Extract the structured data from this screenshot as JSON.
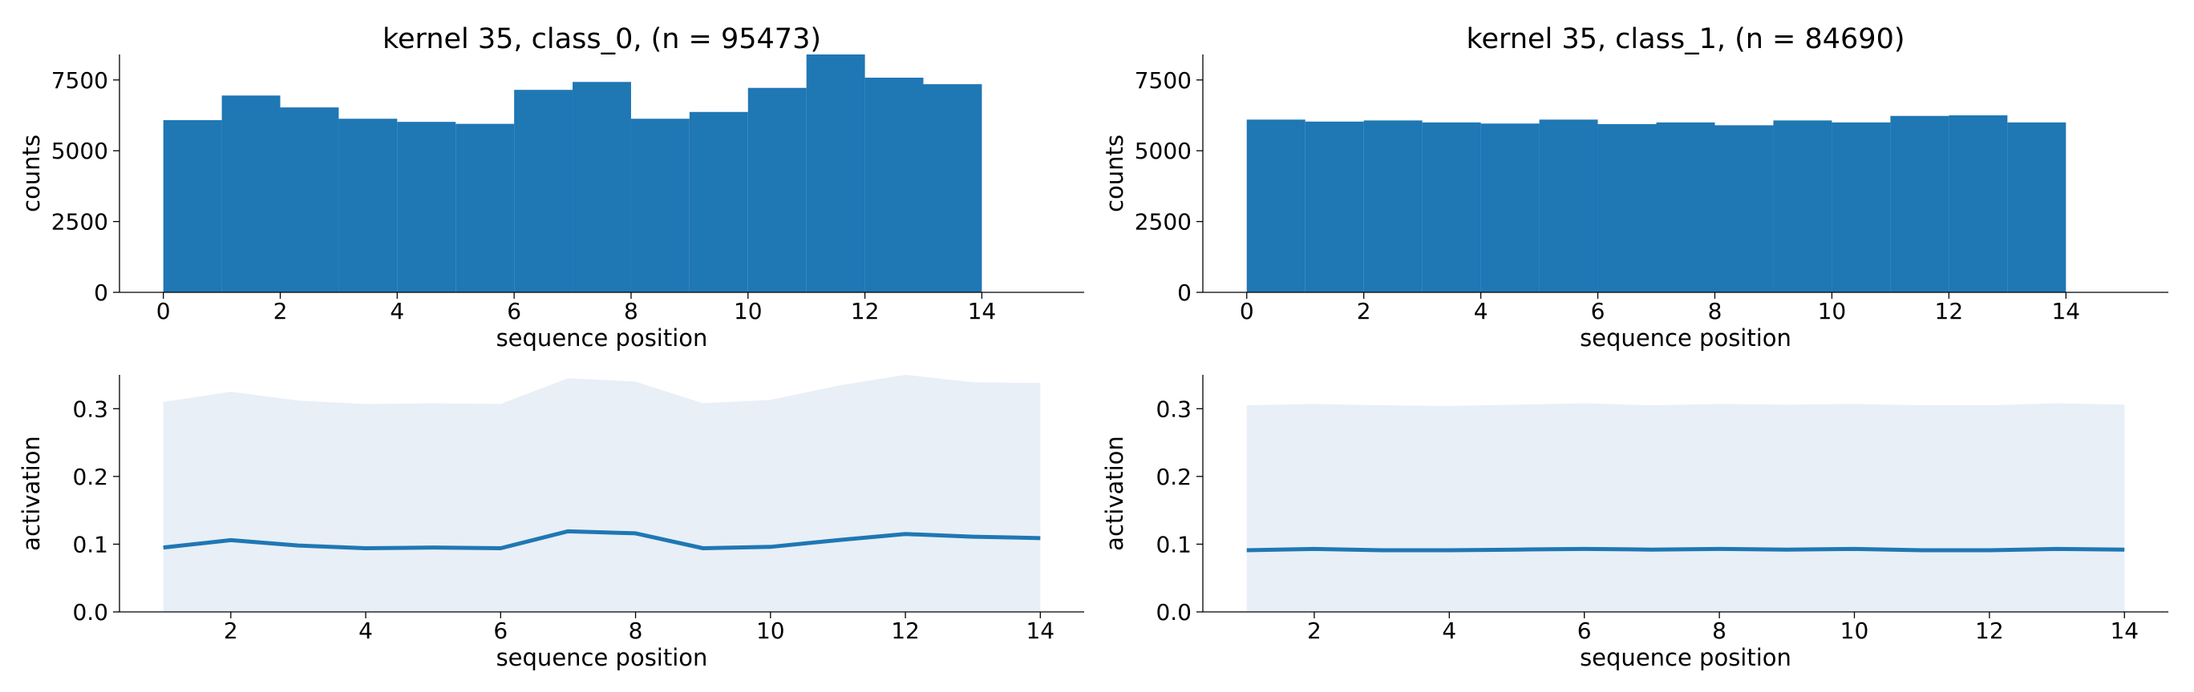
{
  "colors": {
    "bar": "#1f77b4",
    "line": "#1f77b4",
    "band": "#e8eff7",
    "axis": "#000000"
  },
  "chart_data": [
    {
      "type": "bar",
      "title": "kernel 35, class_0, (n = 95473)",
      "xlabel": "sequence position",
      "ylabel": "counts",
      "xlim": [
        -0.75,
        15.75
      ],
      "ylim": [
        0,
        8400
      ],
      "xticks": [
        0,
        2,
        4,
        6,
        8,
        10,
        12,
        14
      ],
      "yticks": [
        0,
        2500,
        5000,
        7500
      ],
      "bin_edges": [
        0,
        1,
        2,
        3,
        4,
        5,
        6,
        7,
        8,
        9,
        10,
        11,
        12,
        13,
        14
      ],
      "values": [
        6080,
        6950,
        6530,
        6130,
        6020,
        5950,
        7150,
        7430,
        6130,
        6370,
        7220,
        8400,
        7580,
        7350
      ]
    },
    {
      "type": "bar",
      "title": "kernel 35, class_1, (n = 84690)",
      "xlabel": "sequence position",
      "ylabel": "counts",
      "xlim": [
        -0.75,
        15.75
      ],
      "ylim": [
        0,
        8400
      ],
      "xticks": [
        0,
        2,
        4,
        6,
        8,
        10,
        12,
        14
      ],
      "yticks": [
        0,
        2500,
        5000,
        7500
      ],
      "bin_edges": [
        0,
        1,
        2,
        3,
        4,
        5,
        6,
        7,
        8,
        9,
        10,
        11,
        12,
        13,
        14
      ],
      "values": [
        6100,
        6030,
        6070,
        6000,
        5960,
        6100,
        5940,
        6000,
        5900,
        6070,
        6000,
        6230,
        6250,
        6000
      ]
    },
    {
      "type": "area",
      "title": "",
      "xlabel": "sequence position",
      "ylabel": "activation",
      "xlim": [
        0.35,
        14.65
      ],
      "ylim": [
        0,
        0.35
      ],
      "xticks": [
        2,
        4,
        6,
        8,
        10,
        12,
        14
      ],
      "yticks": [
        0.0,
        0.1,
        0.2,
        0.3
      ],
      "x": [
        1,
        2,
        3,
        4,
        5,
        6,
        7,
        8,
        9,
        10,
        11,
        12,
        13,
        14
      ],
      "mean": [
        0.095,
        0.106,
        0.098,
        0.094,
        0.095,
        0.094,
        0.119,
        0.116,
        0.094,
        0.096,
        0.106,
        0.115,
        0.111,
        0.109
      ],
      "upper": [
        0.31,
        0.325,
        0.312,
        0.307,
        0.308,
        0.307,
        0.345,
        0.34,
        0.308,
        0.313,
        0.334,
        0.35,
        0.339,
        0.338
      ],
      "lower": [
        0,
        0,
        0,
        0,
        0,
        0,
        0,
        0,
        0,
        0,
        0,
        0,
        0,
        0
      ]
    },
    {
      "type": "area",
      "title": "",
      "xlabel": "sequence position",
      "ylabel": "activation",
      "xlim": [
        0.35,
        14.65
      ],
      "ylim": [
        0,
        0.35
      ],
      "xticks": [
        2,
        4,
        6,
        8,
        10,
        12,
        14
      ],
      "yticks": [
        0.0,
        0.1,
        0.2,
        0.3
      ],
      "x": [
        1,
        2,
        3,
        4,
        5,
        6,
        7,
        8,
        9,
        10,
        11,
        12,
        13,
        14
      ],
      "mean": [
        0.091,
        0.093,
        0.091,
        0.091,
        0.092,
        0.093,
        0.092,
        0.093,
        0.092,
        0.093,
        0.091,
        0.091,
        0.093,
        0.092
      ],
      "upper": [
        0.305,
        0.307,
        0.305,
        0.304,
        0.306,
        0.308,
        0.305,
        0.307,
        0.306,
        0.307,
        0.305,
        0.305,
        0.308,
        0.306
      ],
      "lower": [
        0,
        0,
        0,
        0,
        0,
        0,
        0,
        0,
        0,
        0,
        0,
        0,
        0,
        0
      ]
    }
  ]
}
